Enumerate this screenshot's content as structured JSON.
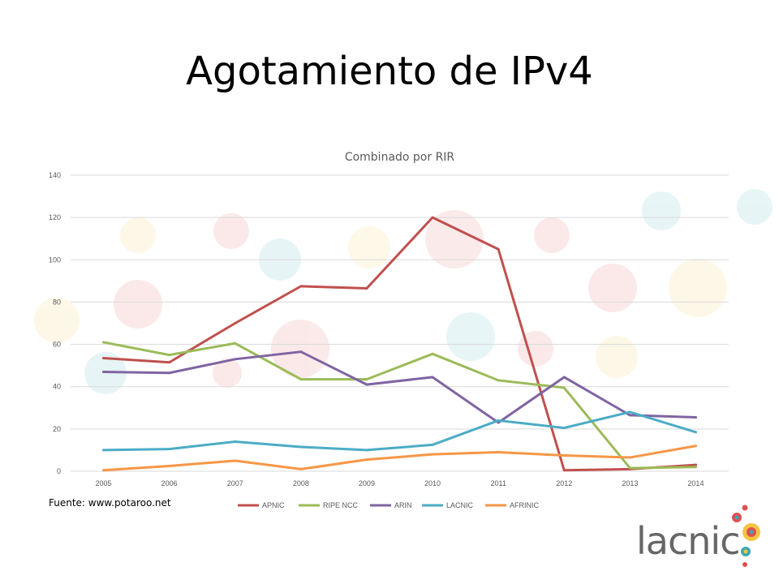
{
  "slide": {
    "title": "Agotamiento de IPv4",
    "source": "Fuente: www.potaroo.net",
    "logo_text": "lacnic"
  },
  "chart_data": {
    "type": "line",
    "title": "Combinado por RIR",
    "xlabel": "",
    "ylabel": "",
    "x": [
      "2005",
      "2006",
      "2007",
      "2008",
      "2009",
      "2010",
      "2011",
      "2012",
      "2013",
      "2014"
    ],
    "ylim": [
      0,
      140
    ],
    "yticks": [
      0,
      20,
      40,
      60,
      80,
      100,
      120,
      140
    ],
    "grid": true,
    "legend": "bottom",
    "series": [
      {
        "name": "APNIC",
        "color": "#c0504d",
        "values": [
          53.5,
          51.5,
          70,
          87.5,
          86.5,
          120,
          105,
          0.5,
          1,
          3
        ]
      },
      {
        "name": "RIPE NCC",
        "color": "#9bbb59",
        "values": [
          61,
          55,
          60.5,
          43.5,
          43.5,
          55.5,
          43,
          39.5,
          1.5,
          2
        ]
      },
      {
        "name": "ARIN",
        "color": "#8064a2",
        "values": [
          47,
          46.5,
          53,
          56.5,
          41,
          44.5,
          23,
          44.5,
          26.5,
          25.5
        ]
      },
      {
        "name": "LACNIC",
        "color": "#4bacc6",
        "values": [
          10,
          10.5,
          14,
          11.5,
          10,
          12.5,
          24,
          20.5,
          28,
          18.5
        ]
      },
      {
        "name": "AFRINIC",
        "color": "#f79646",
        "values": [
          0.5,
          2.5,
          5,
          1,
          5.5,
          8,
          9,
          7.5,
          6.5,
          12
        ]
      }
    ]
  }
}
